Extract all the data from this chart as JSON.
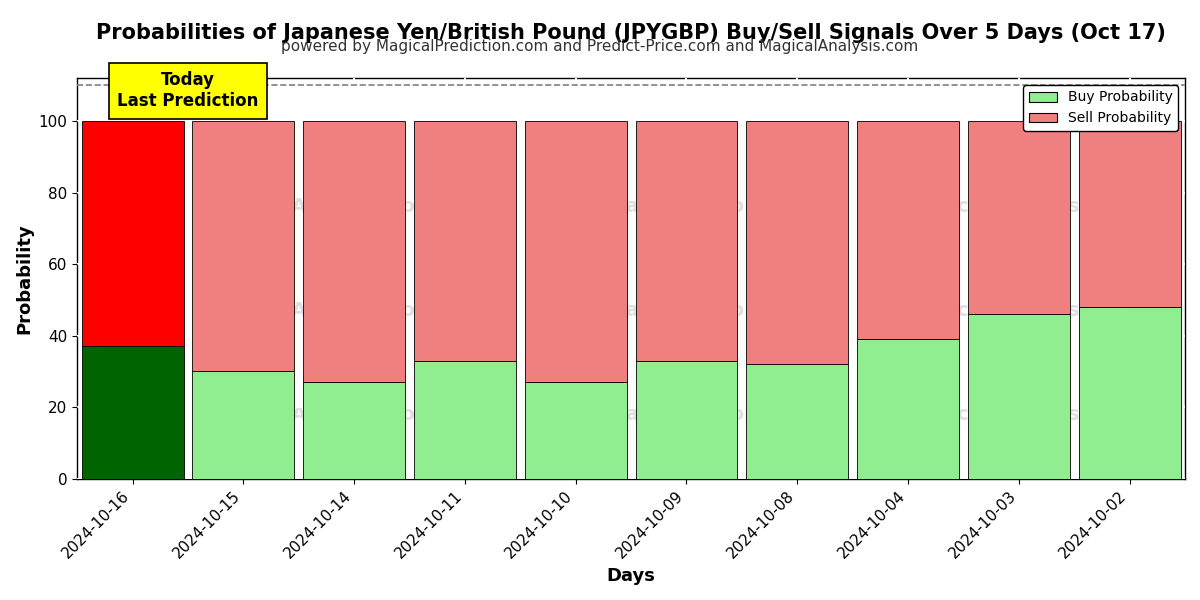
{
  "title": "Probabilities of Japanese Yen/British Pound (JPYGBP) Buy/Sell Signals Over 5 Days (Oct 17)",
  "subtitle": "powered by MagicalPrediction.com and Predict-Price.com and MagicalAnalysis.com",
  "xlabel": "Days",
  "ylabel": "Probability",
  "categories": [
    "2024-10-16",
    "2024-10-15",
    "2024-10-14",
    "2024-10-11",
    "2024-10-10",
    "2024-10-09",
    "2024-10-08",
    "2024-10-04",
    "2024-10-03",
    "2024-10-02"
  ],
  "buy_values": [
    37,
    30,
    27,
    33,
    27,
    33,
    32,
    39,
    46,
    48
  ],
  "sell_values": [
    63,
    70,
    73,
    67,
    73,
    67,
    68,
    61,
    54,
    52
  ],
  "today_bar_buy_color": "#006400",
  "today_bar_sell_color": "#FF0000",
  "other_bar_buy_color": "#90EE90",
  "other_bar_sell_color": "#F08080",
  "bar_edge_color": "#000000",
  "today_label_bg": "#FFFF00",
  "today_label_text": "Today\nLast Prediction",
  "legend_buy_color": "#90EE90",
  "legend_sell_color": "#F08080",
  "ylim": [
    0,
    112
  ],
  "dashed_line_y": 110,
  "grid_color": "#FFFFFF",
  "bg_color": "#FFFFFF",
  "title_fontsize": 15,
  "subtitle_fontsize": 11,
  "axis_label_fontsize": 13,
  "tick_fontsize": 11,
  "bar_width": 0.92
}
